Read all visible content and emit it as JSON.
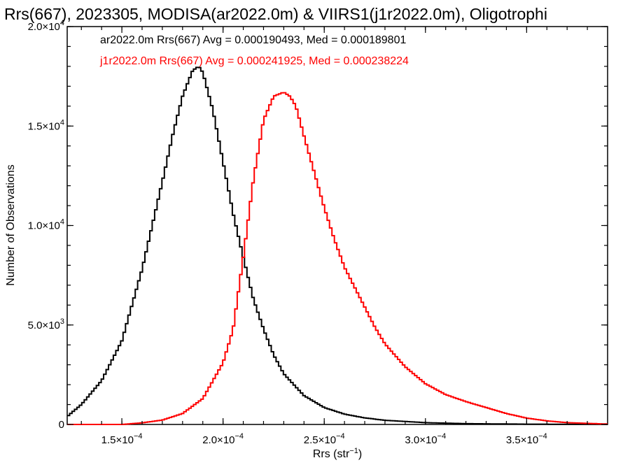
{
  "chart_data": {
    "type": "line",
    "step": true,
    "title": "Rrs(667), 2023305, MODISA(ar2022.0m) & VIIRS1(j1r2022.0m), Oligotrophi",
    "xlabel_text": "Rrs (str",
    "xlabel_sup": "−1",
    "xlabel_close": ")",
    "ylabel": "Number of Observations",
    "xlim": [
      0.000123,
      0.00039
    ],
    "ylim": [
      0,
      20000
    ],
    "x_ticks": [
      {
        "value": 0.00015,
        "mant": "1.5×10",
        "exp": "−4"
      },
      {
        "value": 0.0002,
        "mant": "2.0×10",
        "exp": "−4"
      },
      {
        "value": 0.00025,
        "mant": "2.5×10",
        "exp": "−4"
      },
      {
        "value": 0.0003,
        "mant": "3.0×10",
        "exp": "−4"
      },
      {
        "value": 0.00035,
        "mant": "3.5×10",
        "exp": "−4"
      }
    ],
    "y_ticks": [
      {
        "value": 0,
        "mant": "0",
        "exp": ""
      },
      {
        "value": 5000,
        "mant": "5.0×10",
        "exp": "3"
      },
      {
        "value": 10000,
        "mant": "1.0×10",
        "exp": "4"
      },
      {
        "value": 15000,
        "mant": "1.5×10",
        "exp": "4"
      },
      {
        "value": 20000,
        "mant": "2.0×10",
        "exp": "4"
      }
    ],
    "grid": false,
    "series": [
      {
        "name": "ar2022.0m Rrs(667)",
        "color": "#000000",
        "annotation": "ar2022.0m Rrs(667) Avg = 0.000190493, Med = 0.000189801",
        "x": [
          0.000123,
          0.00013,
          0.00014,
          0.00015,
          0.00016,
          0.00017,
          0.000175,
          0.00018,
          0.000185,
          0.000188,
          0.00019,
          0.000195,
          0.0002,
          0.000205,
          0.00021,
          0.000215,
          0.00022,
          0.000225,
          0.00023,
          0.00024,
          0.00025,
          0.00026,
          0.00027,
          0.00028,
          0.0003,
          0.00032,
          0.00035,
          0.00039
        ],
        "y": [
          400,
          1000,
          2200,
          4200,
          7800,
          12200,
          14500,
          16500,
          17800,
          18000,
          17700,
          15800,
          13200,
          10600,
          8400,
          6300,
          4800,
          3500,
          2550,
          1450,
          850,
          520,
          330,
          210,
          90,
          40,
          15,
          5
        ]
      },
      {
        "name": "j1r2022.0m Rrs(667)",
        "color": "#ff0000",
        "annotation": "j1r2022.0m Rrs(667) Avg = 0.000241925, Med = 0.000238224",
        "x": [
          0.000123,
          0.00015,
          0.00016,
          0.00017,
          0.00018,
          0.00019,
          0.0002,
          0.000205,
          0.00021,
          0.000215,
          0.00022,
          0.000225,
          0.00023,
          0.000233,
          0.000236,
          0.00024,
          0.000245,
          0.00025,
          0.000255,
          0.00026,
          0.000265,
          0.00027,
          0.000275,
          0.00028,
          0.00029,
          0.0003,
          0.00031,
          0.00032,
          0.00033,
          0.00034,
          0.00035,
          0.00036,
          0.00037,
          0.00039
        ],
        "y": [
          0,
          0,
          80,
          220,
          550,
          1300,
          3100,
          4800,
          8400,
          12300,
          15300,
          16500,
          16700,
          16500,
          16000,
          14500,
          12700,
          10900,
          9300,
          7900,
          6900,
          5900,
          4900,
          4050,
          2900,
          2050,
          1500,
          1150,
          850,
          550,
          320,
          180,
          90,
          20
        ]
      }
    ]
  }
}
